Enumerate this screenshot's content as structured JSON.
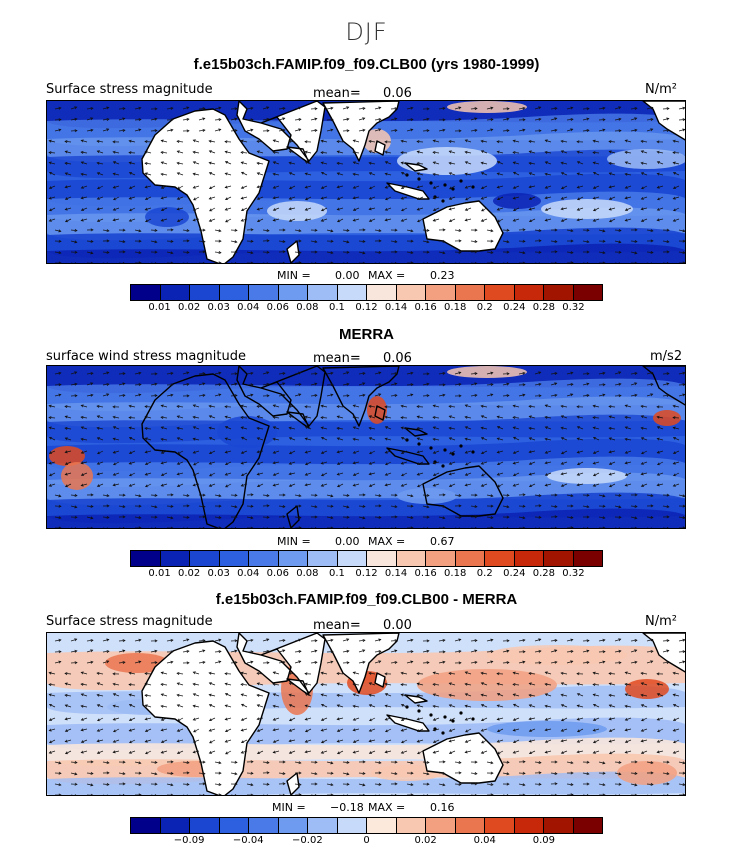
{
  "season": "DJF",
  "panels": [
    {
      "title": "f.e15b03ch.FAMIP.f09_f09.CLB00 (yrs 1980-1999)",
      "left_label": "Surface stress magnitude",
      "mean_label": "mean=",
      "mean_value": "0.06",
      "unit": "N/m²",
      "min_label": "MIN =",
      "min_value": "0.00",
      "max_label": "MAX =",
      "max_value": "0.23",
      "colors": [
        "#00008b",
        "#0a23b4",
        "#1a46d2",
        "#2d60e0",
        "#4a7ae8",
        "#6e9bf0",
        "#9ebcf5",
        "#c8dafa",
        "#f8e6dc",
        "#f8c8b0",
        "#f2a080",
        "#ea7650",
        "#e04a20",
        "#c8280a",
        "#a01400",
        "#7a0000"
      ],
      "ticks": [
        "0.01",
        "0.02",
        "0.03",
        "0.04",
        "0.06",
        "0.08",
        "0.1",
        "0.12",
        "0.14",
        "0.16",
        "0.18",
        "0.2",
        "0.24",
        "0.28",
        "0.32"
      ],
      "style": "model"
    },
    {
      "title": "MERRA",
      "left_label": "surface wind stress magnitude",
      "mean_label": "mean=",
      "mean_value": "0.06",
      "unit": "m/s2",
      "min_label": "MIN =",
      "min_value": "0.00",
      "max_label": "MAX =",
      "max_value": "0.67",
      "colors": [
        "#00008b",
        "#0a23b4",
        "#1a46d2",
        "#2d60e0",
        "#4a7ae8",
        "#6e9bf0",
        "#9ebcf5",
        "#c8dafa",
        "#f8e6dc",
        "#f8c8b0",
        "#f2a080",
        "#ea7650",
        "#e04a20",
        "#c8280a",
        "#a01400",
        "#7a0000"
      ],
      "ticks": [
        "0.01",
        "0.02",
        "0.03",
        "0.04",
        "0.06",
        "0.08",
        "0.1",
        "0.12",
        "0.14",
        "0.16",
        "0.18",
        "0.2",
        "0.24",
        "0.28",
        "0.32"
      ],
      "style": "obs"
    },
    {
      "title": "f.e15b03ch.FAMIP.f09_f09.CLB00 - MERRA",
      "left_label": "Surface stress magnitude",
      "mean_label": "mean=",
      "mean_value": "0.00",
      "unit": "N/m²",
      "min_label": "MIN =",
      "min_value": "−0.18",
      "max_label": "MAX =",
      "max_value": "0.16",
      "colors": [
        "#00008b",
        "#0a23b4",
        "#1a46d2",
        "#2d60e0",
        "#4a7ae8",
        "#6e9bf0",
        "#9ebcf5",
        "#c8dafa",
        "#fde8dc",
        "#f8c8b0",
        "#f2a080",
        "#ea7650",
        "#e04a20",
        "#c8280a",
        "#a01400",
        "#7a0000"
      ],
      "ticks": [
        "−0.09",
        "−0.04",
        "−0.02",
        "0",
        "0.02",
        "0.04",
        "0.09"
      ],
      "tick_boundaries": [
        2,
        4,
        6,
        8,
        10,
        12,
        14
      ],
      "style": "diff"
    }
  ]
}
